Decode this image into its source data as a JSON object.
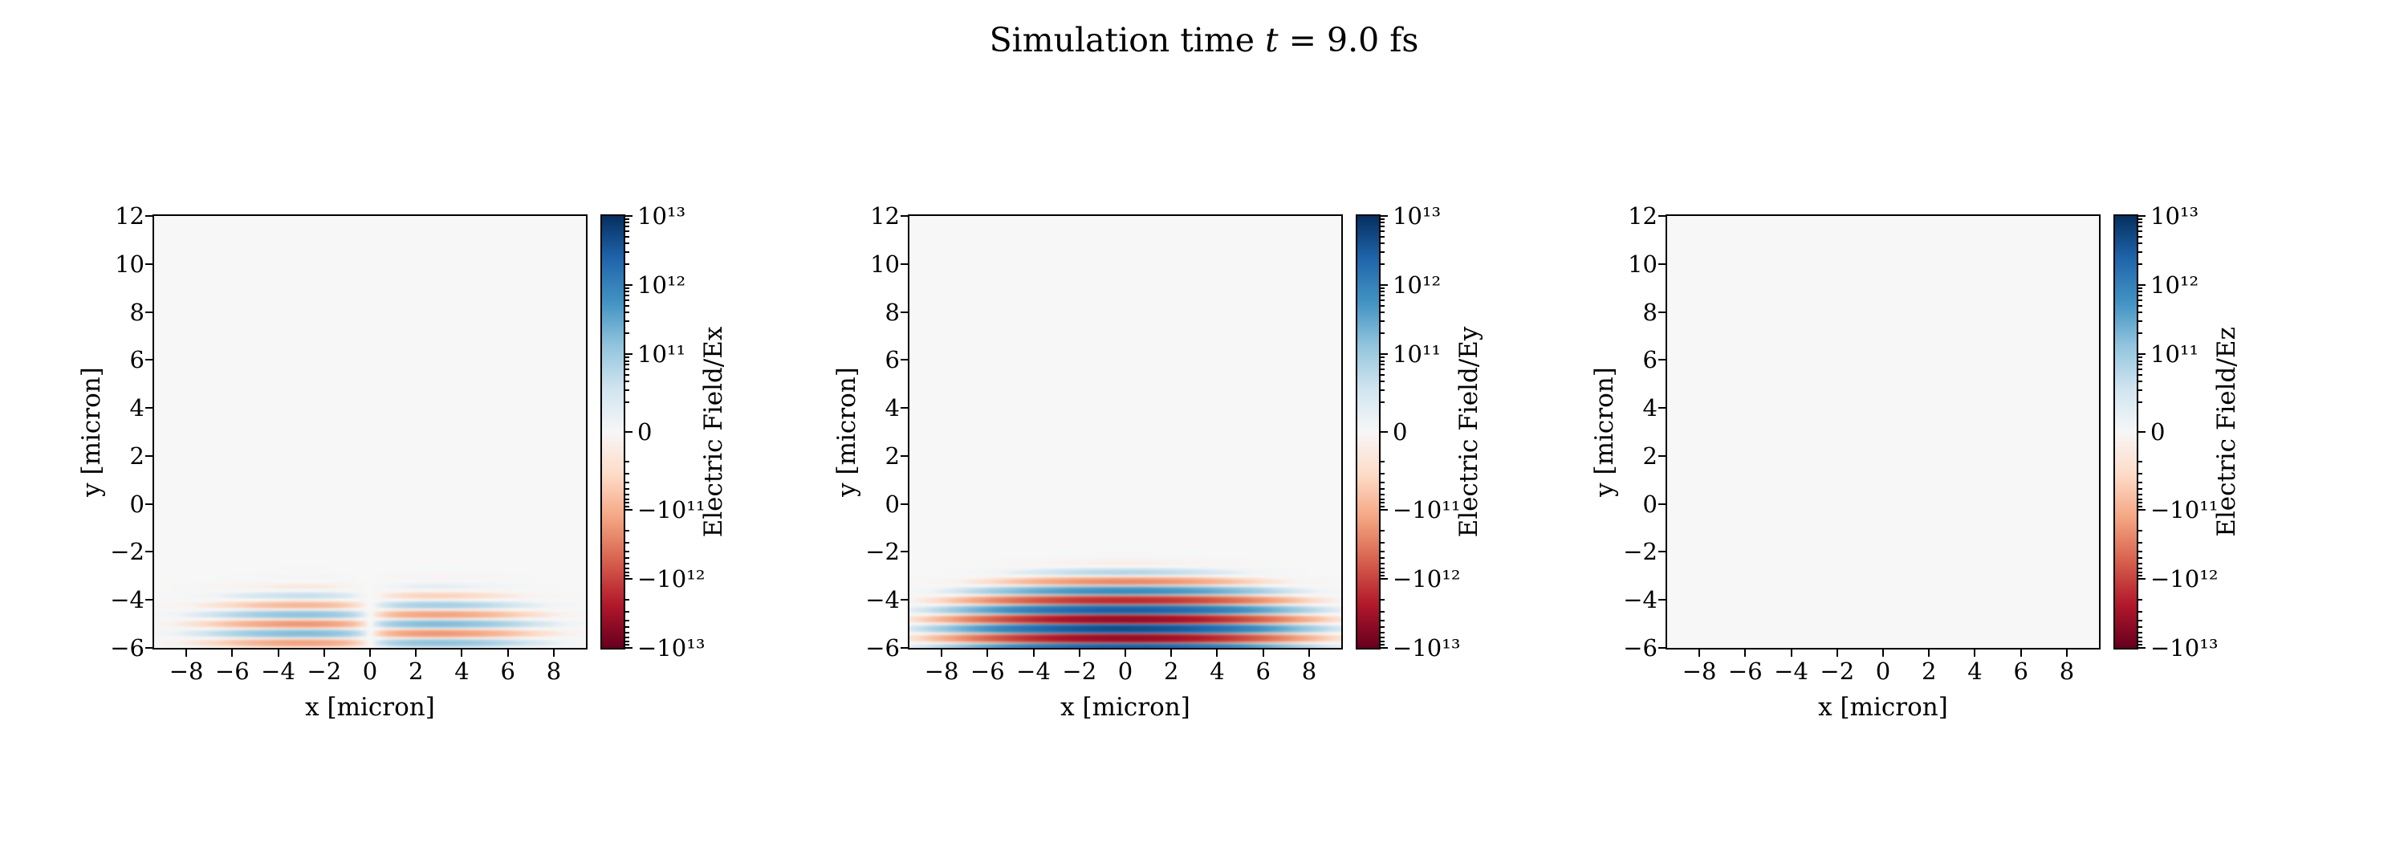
{
  "title": {
    "prefix": "Simulation time ",
    "variable": "t",
    "suffix": " = 9.0 fs"
  },
  "figure": {
    "background": "#ffffff",
    "axes_background": "#f7f7f7",
    "spine_color": "#000000"
  },
  "colormap": {
    "name": "RdBu",
    "anchors": [
      [
        -1.0,
        "#67001f"
      ],
      [
        -0.8,
        "#b2182b"
      ],
      [
        -0.6,
        "#d6604d"
      ],
      [
        -0.4,
        "#f4a582"
      ],
      [
        -0.2,
        "#fddbc7"
      ],
      [
        0.0,
        "#f7f7f7"
      ],
      [
        0.2,
        "#d1e5f0"
      ],
      [
        0.4,
        "#92c5de"
      ],
      [
        0.6,
        "#4393c3"
      ],
      [
        0.8,
        "#2166ac"
      ],
      [
        1.0,
        "#053061"
      ]
    ]
  },
  "chart_data": [
    {
      "type": "heatmap",
      "xlabel": "x [micron]",
      "ylabel": "y [micron]",
      "xlim": [
        -9.4,
        9.4
      ],
      "ylim": [
        -6,
        12
      ],
      "xticks": [
        -8,
        -6,
        -4,
        -2,
        0,
        2,
        4,
        6,
        8
      ],
      "xtick_labels": [
        "−8",
        "−6",
        "−4",
        "−2",
        "0",
        "2",
        "4",
        "6",
        "8"
      ],
      "yticks": [
        12,
        10,
        8,
        6,
        4,
        2,
        0,
        -2,
        -4,
        -6
      ],
      "ytick_labels": [
        "12",
        "10",
        "8",
        "6",
        "4",
        "2",
        "0",
        "−2",
        "−4",
        "−6"
      ],
      "colorbar": {
        "label": "Electric Field/Ex",
        "scale": "symlog",
        "vmin": -10000000000000.0,
        "vmax": 10000000000000.0,
        "linthresh": 10000000000.0,
        "decades_per_side": 3,
        "major_ticks": [
          {
            "value": 10000000000000.0,
            "label": "10¹³"
          },
          {
            "value": 1000000000000.0,
            "label": "10¹²"
          },
          {
            "value": 100000000000.0,
            "label": "10¹¹"
          },
          {
            "value": 0,
            "label": "0"
          },
          {
            "value": -100000000000.0,
            "label": "−10¹¹"
          },
          {
            "value": -1000000000000.0,
            "label": "−10¹²"
          },
          {
            "value": -10000000000000.0,
            "label": "−10¹³"
          }
        ]
      },
      "field": {
        "component": "Ex",
        "model": "antisym_x_stripes",
        "amplitude": 300000000000.0,
        "center_x": 0,
        "center_y": -5.2,
        "sigma_x": 2.9,
        "sigma_y": 0.8,
        "wavelength_y": 0.8
      }
    },
    {
      "type": "heatmap",
      "xlabel": "x [micron]",
      "ylabel": "y [micron]",
      "xlim": [
        -9.4,
        9.4
      ],
      "ylim": [
        -6,
        12
      ],
      "xticks": [
        -8,
        -6,
        -4,
        -2,
        0,
        2,
        4,
        6,
        8
      ],
      "xtick_labels": [
        "−8",
        "−6",
        "−4",
        "−2",
        "0",
        "2",
        "4",
        "6",
        "8"
      ],
      "yticks": [
        12,
        10,
        8,
        6,
        4,
        2,
        0,
        -2,
        -4,
        -6
      ],
      "ytick_labels": [
        "12",
        "10",
        "8",
        "6",
        "4",
        "2",
        "0",
        "−2",
        "−4",
        "−6"
      ],
      "colorbar": {
        "label": "Electric Field/Ey",
        "scale": "symlog",
        "vmin": -10000000000000.0,
        "vmax": 10000000000000.0,
        "linthresh": 10000000000.0,
        "decades_per_side": 3,
        "major_ticks": [
          {
            "value": 10000000000000.0,
            "label": "10¹³"
          },
          {
            "value": 1000000000000.0,
            "label": "10¹²"
          },
          {
            "value": 100000000000.0,
            "label": "10¹¹"
          },
          {
            "value": 0,
            "label": "0"
          },
          {
            "value": -100000000000.0,
            "label": "−10¹¹"
          },
          {
            "value": -1000000000000.0,
            "label": "−10¹²"
          },
          {
            "value": -10000000000000.0,
            "label": "−10¹³"
          }
        ]
      },
      "field": {
        "component": "Ey",
        "model": "sym_stripes",
        "amplitude": 5000000000000.0,
        "center_x": 0,
        "center_y": -5.2,
        "sigma_x": 2.9,
        "sigma_y": 0.8,
        "wavelength_y": 0.8
      }
    },
    {
      "type": "heatmap",
      "xlabel": "x [micron]",
      "ylabel": "y [micron]",
      "xlim": [
        -9.4,
        9.4
      ],
      "ylim": [
        -6,
        12
      ],
      "xticks": [
        -8,
        -6,
        -4,
        -2,
        0,
        2,
        4,
        6,
        8
      ],
      "xtick_labels": [
        "−8",
        "−6",
        "−4",
        "−2",
        "0",
        "2",
        "4",
        "6",
        "8"
      ],
      "yticks": [
        12,
        10,
        8,
        6,
        4,
        2,
        0,
        -2,
        -4,
        -6
      ],
      "ytick_labels": [
        "12",
        "10",
        "8",
        "6",
        "4",
        "2",
        "0",
        "−2",
        "−4",
        "−6"
      ],
      "colorbar": {
        "label": "Electric Field/Ez",
        "scale": "symlog",
        "vmin": -10000000000000.0,
        "vmax": 10000000000000.0,
        "linthresh": 10000000000.0,
        "decades_per_side": 3,
        "major_ticks": [
          {
            "value": 10000000000000.0,
            "label": "10¹³"
          },
          {
            "value": 1000000000000.0,
            "label": "10¹²"
          },
          {
            "value": 100000000000.0,
            "label": "10¹¹"
          },
          {
            "value": 0,
            "label": "0"
          },
          {
            "value": -100000000000.0,
            "label": "−10¹¹"
          },
          {
            "value": -1000000000000.0,
            "label": "−10¹²"
          },
          {
            "value": -10000000000000.0,
            "label": "−10¹³"
          }
        ]
      },
      "field": {
        "component": "Ez",
        "model": "uniform_zero",
        "amplitude": 0,
        "center_x": 0,
        "center_y": -5.2,
        "sigma_x": 2.9,
        "sigma_y": 0.8,
        "wavelength_y": 0.8
      }
    }
  ]
}
